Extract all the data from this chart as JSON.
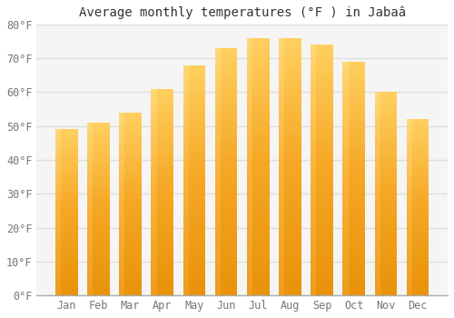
{
  "title": "Average monthly temperatures (°F ) in Jabaâ",
  "months": [
    "Jan",
    "Feb",
    "Mar",
    "Apr",
    "May",
    "Jun",
    "Jul",
    "Aug",
    "Sep",
    "Oct",
    "Nov",
    "Dec"
  ],
  "values": [
    49,
    51,
    54,
    61,
    68,
    73,
    76,
    76,
    74,
    69,
    60,
    52
  ],
  "ylim": [
    0,
    80
  ],
  "yticks": [
    0,
    10,
    20,
    30,
    40,
    50,
    60,
    70,
    80
  ],
  "ytick_labels": [
    "0°F",
    "10°F",
    "20°F",
    "30°F",
    "40°F",
    "50°F",
    "60°F",
    "70°F",
    "80°F"
  ],
  "bar_color_bottom": "#E8920A",
  "bar_color_mid": "#F5A623",
  "bar_color_top": "#FFD060",
  "bar_highlight": "#FFE090",
  "background_color": "#ffffff",
  "plot_bg_color": "#f5f5f5",
  "grid_color": "#dddddd",
  "title_fontsize": 10,
  "tick_fontsize": 8.5,
  "bar_width": 0.7
}
